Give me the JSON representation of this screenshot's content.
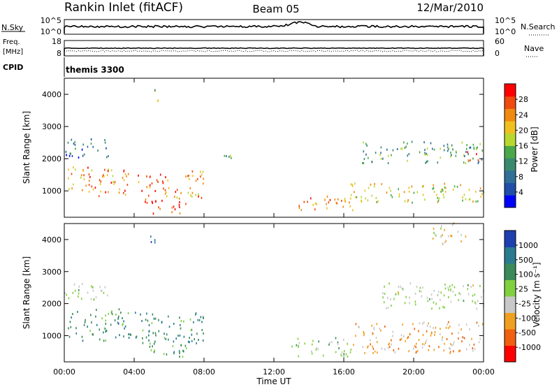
{
  "header": {
    "station": "Rankin Inlet (fitACF)",
    "beam": "Beam 05",
    "date": "12/Mar/2010"
  },
  "strips": {
    "nsky_label": "N.Sky",
    "nsky_ticks": [
      "10^5",
      "10^0"
    ],
    "nsearch_label": "N.Search",
    "nsearch_ticks": [
      "10^5",
      "10^0"
    ],
    "freq_label": "Freq.",
    "freq_unit": "[MHz]",
    "freq_ticks": [
      "18",
      "8"
    ],
    "nave_label": "Nave",
    "nave_ticks": [
      "60",
      "0"
    ],
    "cpid_label": "CPID",
    "cpid_value": "themis 3300"
  },
  "chart_data": [
    {
      "type": "heatmap",
      "title": "",
      "xlabel": "Time UT",
      "ylabel": "Slant Range [km]",
      "xlim": [
        0,
        24
      ],
      "x_ticks": [
        "00:00",
        "04:00",
        "08:00",
        "12:00",
        "16:00",
        "20:00",
        "00:00"
      ],
      "ylim": [
        180,
        4500
      ],
      "y_ticks": [
        "1000",
        "2000",
        "3000",
        "4000"
      ],
      "colorbar": {
        "label": "Power [dB]",
        "ticks": [
          "28",
          "24",
          "20",
          "16",
          "12",
          "8",
          "4"
        ],
        "range": [
          0,
          30
        ],
        "colors": [
          "#0000ff",
          "#1f4fa8",
          "#2f6f98",
          "#3a8a6f",
          "#4aa84a",
          "#b8d830",
          "#f0c020",
          "#f08a10",
          "#f04a10",
          "#ff0000"
        ]
      },
      "regions": [
        {
          "t": [
            0.2,
            3.8
          ],
          "r": [
            800,
            1700
          ],
          "level": 22
        },
        {
          "t": [
            0.0,
            2.5
          ],
          "r": [
            2000,
            2600
          ],
          "level": 8
        },
        {
          "t": [
            4.0,
            6.0
          ],
          "r": [
            800,
            1500
          ],
          "level": 24
        },
        {
          "t": [
            6.2,
            8.0
          ],
          "r": [
            700,
            1600
          ],
          "level": 22
        },
        {
          "t": [
            4.6,
            7.0
          ],
          "r": [
            250,
            700
          ],
          "level": 27
        },
        {
          "t": [
            13.0,
            16.5
          ],
          "r": [
            350,
            800
          ],
          "level": 24
        },
        {
          "t": [
            16.3,
            24.0
          ],
          "r": [
            600,
            1200
          ],
          "level": 18
        },
        {
          "t": [
            17.0,
            24.0
          ],
          "r": [
            1800,
            2500
          ],
          "level": 12
        },
        {
          "t": [
            23.0,
            24.0
          ],
          "r": [
            1900,
            2200
          ],
          "level": 26
        },
        {
          "t": [
            4.9,
            5.4
          ],
          "r": [
            3700,
            4100
          ],
          "level": 14
        },
        {
          "t": [
            9.0,
            9.6
          ],
          "r": [
            1800,
            2300
          ],
          "level": 12
        }
      ]
    },
    {
      "type": "heatmap",
      "title": "",
      "xlabel": "Time UT",
      "ylabel": "Slant Range [km]",
      "xlim": [
        0,
        24
      ],
      "x_ticks": [
        "00:00",
        "04:00",
        "08:00",
        "12:00",
        "16:00",
        "20:00",
        "00:00"
      ],
      "ylim": [
        180,
        4500
      ],
      "y_ticks": [
        "1000",
        "2000",
        "3000",
        "4000"
      ],
      "colorbar": {
        "label": "Velocity [m s⁻¹]",
        "ticks": [
          "1000",
          "500",
          "100",
          "25",
          "-25",
          "-100",
          "-500",
          "-1000"
        ],
        "range": [
          -1000,
          1000
        ],
        "colors": [
          "#ff0000",
          "#f06010",
          "#f0a020",
          "#c8c8c8",
          "#80d040",
          "#3a8a5a",
          "#2a7a90",
          "#1f3fb0"
        ]
      },
      "regions": [
        {
          "t": [
            0.2,
            3.8
          ],
          "r": [
            800,
            1800
          ],
          "level": 400
        },
        {
          "t": [
            4.0,
            8.0
          ],
          "r": [
            700,
            1700
          ],
          "level": 450
        },
        {
          "t": [
            0.0,
            2.5
          ],
          "r": [
            2000,
            2600
          ],
          "level": 0
        },
        {
          "t": [
            4.6,
            7.0
          ],
          "r": [
            250,
            700
          ],
          "level": 300
        },
        {
          "t": [
            13.0,
            16.5
          ],
          "r": [
            300,
            900
          ],
          "level": 60
        },
        {
          "t": [
            16.5,
            24.0
          ],
          "r": [
            400,
            1400
          ],
          "level": -350
        },
        {
          "t": [
            18.0,
            24.0
          ],
          "r": [
            1800,
            2600
          ],
          "level": 0
        },
        {
          "t": [
            4.9,
            5.4
          ],
          "r": [
            3700,
            4100
          ],
          "level": 700
        },
        {
          "t": [
            21.0,
            23.0
          ],
          "r": [
            3800,
            4500
          ],
          "level": -200
        }
      ]
    }
  ]
}
